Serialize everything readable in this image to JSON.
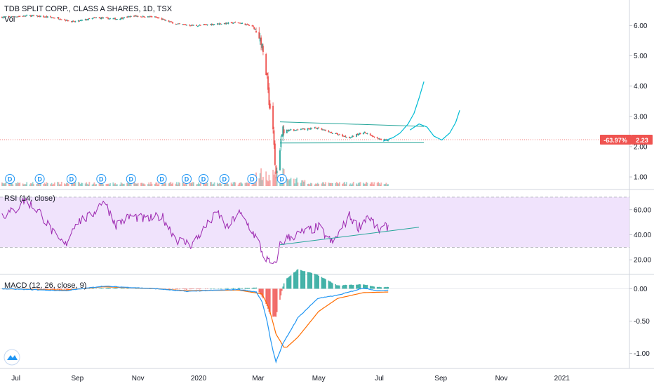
{
  "header": {
    "symbol_title": "TDB SPLIT CORP., CLASS A SHARES, 1D, TSX",
    "volume_label": "Vol"
  },
  "price_badge": {
    "change": "-63.97%",
    "price": "2.23",
    "color": "#ef5350"
  },
  "colors": {
    "up": "#26a69a",
    "down": "#ef5350",
    "rsi": "#9c27b0",
    "rsi_band": "#e9d7fb",
    "macd": "#2196f3",
    "signal": "#ff6d00",
    "drawing": "#26a69a"
  },
  "time_axis": {
    "labels": [
      "Jul",
      "Sep",
      "Nov",
      "2020",
      "Mar",
      "May",
      "Jul",
      "Sep",
      "Nov",
      "2021"
    ]
  },
  "dividend_marker": "D",
  "logo_icon": "tradingview-logo-icon",
  "chart_data": [
    {
      "type": "candlestick",
      "pane": "price",
      "title": "TDB SPLIT CORP., CLASS A SHARES, 1D, TSX",
      "ylim": [
        0.7,
        6.8
      ],
      "y_ticks": [
        "6.00",
        "5.00",
        "4.00",
        "3.00",
        "2.00",
        "1.00"
      ],
      "last_price": 2.23,
      "change_pct": "-63.97%",
      "x_range": [
        "2019-06-15",
        "2021-03-10"
      ],
      "anchors": [
        [
          "2019-06-17",
          6.28
        ],
        [
          "2019-07-15",
          6.33
        ],
        [
          "2019-08-12",
          6.25
        ],
        [
          "2019-08-28",
          6.12
        ],
        [
          "2019-09-20",
          6.26
        ],
        [
          "2019-10-10",
          6.22
        ],
        [
          "2019-10-28",
          6.32
        ],
        [
          "2019-11-18",
          6.28
        ],
        [
          "2019-12-10",
          6.05
        ],
        [
          "2019-12-30",
          6.0
        ],
        [
          "2020-01-20",
          6.06
        ],
        [
          "2020-02-10",
          6.1
        ],
        [
          "2020-02-24",
          5.98
        ],
        [
          "2020-03-02",
          5.72
        ],
        [
          "2020-03-06",
          5.1
        ],
        [
          "2020-03-10",
          4.3
        ],
        [
          "2020-03-12",
          3.5
        ],
        [
          "2020-03-16",
          2.6
        ],
        [
          "2020-03-18",
          1.35
        ],
        [
          "2020-03-20",
          1.05
        ],
        [
          "2020-03-23",
          2.05
        ],
        [
          "2020-03-25",
          2.5
        ],
        [
          "2020-03-30",
          2.55
        ],
        [
          "2020-04-10",
          2.55
        ],
        [
          "2020-04-28",
          2.62
        ],
        [
          "2020-05-15",
          2.45
        ],
        [
          "2020-06-01",
          2.3
        ],
        [
          "2020-06-15",
          2.48
        ],
        [
          "2020-06-30",
          2.25
        ],
        [
          "2020-07-10",
          2.22
        ]
      ]
    },
    {
      "type": "bar",
      "pane": "volume",
      "title": "Vol"
    },
    {
      "type": "line",
      "pane": "rsi",
      "title": "RSI (14, close)",
      "ylim": [
        10,
        75
      ],
      "y_ticks": [
        "60.00",
        "40.00",
        "20.00"
      ],
      "bands": [
        30,
        70
      ],
      "anchors": [
        [
          "2019-06-20",
          56
        ],
        [
          "2019-07-01",
          60
        ],
        [
          "2019-07-10",
          68
        ],
        [
          "2019-07-25",
          58
        ],
        [
          "2019-08-12",
          36
        ],
        [
          "2019-08-20",
          32
        ],
        [
          "2019-08-30",
          50
        ],
        [
          "2019-09-15",
          55
        ],
        [
          "2019-09-27",
          68
        ],
        [
          "2019-10-10",
          48
        ],
        [
          "2019-10-25",
          55
        ],
        [
          "2019-11-10",
          52
        ],
        [
          "2019-11-25",
          55
        ],
        [
          "2019-12-10",
          36
        ],
        [
          "2019-12-25",
          32
        ],
        [
          "2020-01-10",
          48
        ],
        [
          "2020-01-20",
          58
        ],
        [
          "2020-01-30",
          45
        ],
        [
          "2020-02-10",
          58
        ],
        [
          "2020-02-20",
          48
        ],
        [
          "2020-03-01",
          35
        ],
        [
          "2020-03-06",
          24
        ],
        [
          "2020-03-12",
          18
        ],
        [
          "2020-03-18",
          15
        ],
        [
          "2020-03-23",
          32
        ],
        [
          "2020-03-30",
          37
        ],
        [
          "2020-04-15",
          42
        ],
        [
          "2020-05-01",
          46
        ],
        [
          "2020-05-15",
          33
        ],
        [
          "2020-06-01",
          55
        ],
        [
          "2020-06-10",
          46
        ],
        [
          "2020-06-20",
          56
        ],
        [
          "2020-06-30",
          43
        ],
        [
          "2020-07-10",
          47
        ]
      ],
      "trendline": [
        [
          "2020-03-23",
          32
        ],
        [
          "2020-08-10",
          46
        ]
      ]
    },
    {
      "type": "line",
      "pane": "macd",
      "title": "MACD (12, 26, close, 9)",
      "ylim": [
        -1.2,
        0.2
      ],
      "y_ticks": [
        "0.00",
        "-0.50",
        "-1.00"
      ],
      "macd": [
        [
          "2019-06-17",
          0.0
        ],
        [
          "2019-08-20",
          -0.03
        ],
        [
          "2019-09-27",
          0.04
        ],
        [
          "2019-11-20",
          0.0
        ],
        [
          "2019-12-20",
          -0.04
        ],
        [
          "2020-02-10",
          -0.01
        ],
        [
          "2020-02-28",
          -0.05
        ],
        [
          "2020-03-05",
          -0.2
        ],
        [
          "2020-03-10",
          -0.5
        ],
        [
          "2020-03-15",
          -0.9
        ],
        [
          "2020-03-19",
          -1.13
        ],
        [
          "2020-03-26",
          -0.85
        ],
        [
          "2020-04-10",
          -0.45
        ],
        [
          "2020-04-30",
          -0.15
        ],
        [
          "2020-05-20",
          -0.1
        ],
        [
          "2020-06-15",
          0.01
        ],
        [
          "2020-06-30",
          -0.03
        ],
        [
          "2020-07-10",
          -0.02
        ]
      ],
      "signal": [
        [
          "2019-06-17",
          0.0
        ],
        [
          "2019-08-20",
          -0.02
        ],
        [
          "2019-09-27",
          0.03
        ],
        [
          "2019-11-20",
          0.0
        ],
        [
          "2019-12-20",
          -0.03
        ],
        [
          "2020-02-10",
          -0.02
        ],
        [
          "2020-03-05",
          -0.08
        ],
        [
          "2020-03-12",
          -0.3
        ],
        [
          "2020-03-19",
          -0.7
        ],
        [
          "2020-03-28",
          -0.93
        ],
        [
          "2020-04-10",
          -0.75
        ],
        [
          "2020-05-01",
          -0.35
        ],
        [
          "2020-05-20",
          -0.15
        ],
        [
          "2020-06-15",
          -0.06
        ],
        [
          "2020-07-10",
          -0.05
        ]
      ]
    }
  ]
}
